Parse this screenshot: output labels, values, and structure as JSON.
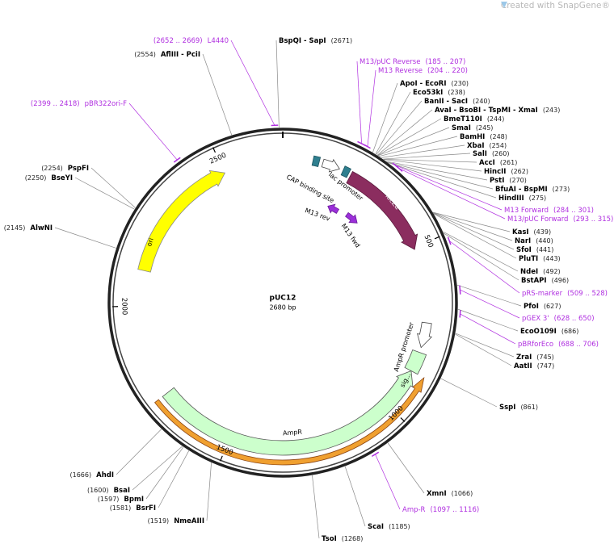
{
  "header": {
    "credit": "Created with SnapGene®"
  },
  "plasmid": {
    "name": "pUC12",
    "size": "2680 bp"
  },
  "ticks": [
    500,
    1000,
    1500,
    2000,
    2500
  ],
  "features": [
    {
      "name": "lacZα"
    },
    {
      "name": "lac promoter"
    },
    {
      "name": "CAP binding site"
    },
    {
      "name": "M13 rev"
    },
    {
      "name": "M13 fwd"
    },
    {
      "name": "ori"
    },
    {
      "name": "AmpR"
    },
    {
      "name": "AmpR promoter"
    },
    {
      "name": "sig..."
    }
  ],
  "sites": [
    {
      "name": "BspQI - SapI",
      "pos": "(2671)"
    },
    {
      "name": "AflIII - PciI",
      "pos": "(2554)"
    },
    {
      "name": "PspFI",
      "pos": "(2254)"
    },
    {
      "name": "BseYI",
      "pos": "(2250)"
    },
    {
      "name": "AlwNI",
      "pos": "(2145)"
    },
    {
      "name": "ApoI - EcoRI",
      "pos": "(230)"
    },
    {
      "name": "Eco53kI",
      "pos": "(238)"
    },
    {
      "name": "BanII - SacI",
      "pos": "(240)"
    },
    {
      "name": "AvaI - BsoBI - TspMI - XmaI",
      "pos": "(243)"
    },
    {
      "name": "BmeT110I",
      "pos": "(244)"
    },
    {
      "name": "SmaI",
      "pos": "(245)"
    },
    {
      "name": "BamHI",
      "pos": "(248)"
    },
    {
      "name": "XbaI",
      "pos": "(254)"
    },
    {
      "name": "SalI",
      "pos": "(260)"
    },
    {
      "name": "AccI",
      "pos": "(261)"
    },
    {
      "name": "HincII",
      "pos": "(262)"
    },
    {
      "name": "PstI",
      "pos": "(270)"
    },
    {
      "name": "BfuAI - BspMI",
      "pos": "(273)"
    },
    {
      "name": "HindIII",
      "pos": "(275)"
    },
    {
      "name": "KasI",
      "pos": "(439)"
    },
    {
      "name": "NarI",
      "pos": "(440)"
    },
    {
      "name": "SfoI",
      "pos": "(441)"
    },
    {
      "name": "PluTI",
      "pos": "(443)"
    },
    {
      "name": "NdeI",
      "pos": "(492)"
    },
    {
      "name": "BstAPI",
      "pos": "(496)"
    },
    {
      "name": "PfoI",
      "pos": "(627)"
    },
    {
      "name": "EcoO109I",
      "pos": "(686)"
    },
    {
      "name": "ZraI",
      "pos": "(745)"
    },
    {
      "name": "AatII",
      "pos": "(747)"
    },
    {
      "name": "SspI",
      "pos": "(861)"
    },
    {
      "name": "XmnI",
      "pos": "(1066)"
    },
    {
      "name": "ScaI",
      "pos": "(1185)"
    },
    {
      "name": "TsoI",
      "pos": "(1268)"
    },
    {
      "name": "AhdI",
      "pos": "(1666)"
    },
    {
      "name": "BsaI",
      "pos": "(1600)"
    },
    {
      "name": "BpmI",
      "pos": "(1597)"
    },
    {
      "name": "BsrFI",
      "pos": "(1581)"
    },
    {
      "name": "NmeAIII",
      "pos": "(1519)"
    }
  ],
  "primers": [
    {
      "name": "L4440",
      "pos": "(2652 .. 2669)"
    },
    {
      "name": "pBR322ori-F",
      "pos": "(2399 .. 2418)"
    },
    {
      "name": "M13/pUC Reverse",
      "pos": "(185 .. 207)"
    },
    {
      "name": "M13 Reverse",
      "pos": "(204 .. 220)"
    },
    {
      "name": "M13 Forward",
      "pos": "(284 .. 301)"
    },
    {
      "name": "M13/pUC Forward",
      "pos": "(293 .. 315)"
    },
    {
      "name": "pRS-marker",
      "pos": "(509 .. 528)"
    },
    {
      "name": "pGEX 3'",
      "pos": "(628 .. 650)"
    },
    {
      "name": "pBRforEco",
      "pos": "(688 .. 706)"
    },
    {
      "name": "Amp-R",
      "pos": "(1097 .. 1116)"
    }
  ]
}
